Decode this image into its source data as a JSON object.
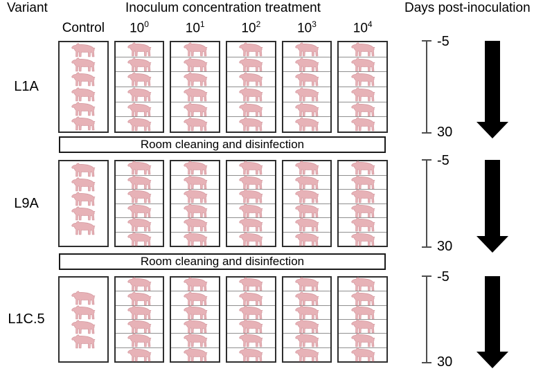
{
  "page": {
    "variant_header": "Variant",
    "treatment_header": "Inoculum concentration treatment",
    "days_header": "Days post-inoculation"
  },
  "columns": [
    {
      "base": "Control",
      "exp": ""
    },
    {
      "base": "10",
      "exp": "0"
    },
    {
      "base": "10",
      "exp": "1"
    },
    {
      "base": "10",
      "exp": "2"
    },
    {
      "base": "10",
      "exp": "3"
    },
    {
      "base": "10",
      "exp": "4"
    }
  ],
  "rows": [
    {
      "variant": "L1A",
      "timeline": {
        "start": "-5",
        "end": "30"
      },
      "pens": [
        {
          "pigs": 6,
          "divided": false,
          "valign": "space"
        },
        {
          "pigs": 6,
          "divided": true
        },
        {
          "pigs": 6,
          "divided": true
        },
        {
          "pigs": 6,
          "divided": true
        },
        {
          "pigs": 6,
          "divided": true
        },
        {
          "pigs": 6,
          "divided": true
        }
      ]
    },
    {
      "variant": "L9A",
      "timeline": {
        "start": "-5",
        "end": "30"
      },
      "pens": [
        {
          "pigs": 5,
          "divided": false,
          "valign": "top"
        },
        {
          "pigs": 6,
          "divided": true
        },
        {
          "pigs": 6,
          "divided": true
        },
        {
          "pigs": 6,
          "divided": true
        },
        {
          "pigs": 6,
          "divided": true
        },
        {
          "pigs": 6,
          "divided": true
        }
      ]
    },
    {
      "variant": "L1C.5",
      "timeline": {
        "start": "-5",
        "end": "30"
      },
      "pens": [
        {
          "pigs": 4,
          "divided": false,
          "valign": "center"
        },
        {
          "pigs": 6,
          "divided": true
        },
        {
          "pigs": 6,
          "divided": true
        },
        {
          "pigs": 6,
          "divided": true
        },
        {
          "pigs": 6,
          "divided": true
        },
        {
          "pigs": 6,
          "divided": true
        }
      ]
    }
  ],
  "banners": [
    "Room cleaning and disinfection",
    "Room cleaning and disinfection"
  ],
  "icons": {
    "pig": "pig-icon",
    "down_arrow": "down-arrow-icon"
  },
  "colors": {
    "pig_fill": "#e7b2b7",
    "pig_outline": "#d59aa0",
    "pen_border": "#2e2e2e",
    "cell_divider": "#8f8f8f",
    "banner_border": "#1a1a1a",
    "scale_line": "#4d4d4d",
    "arrow": "#000000",
    "text": "#000000"
  }
}
